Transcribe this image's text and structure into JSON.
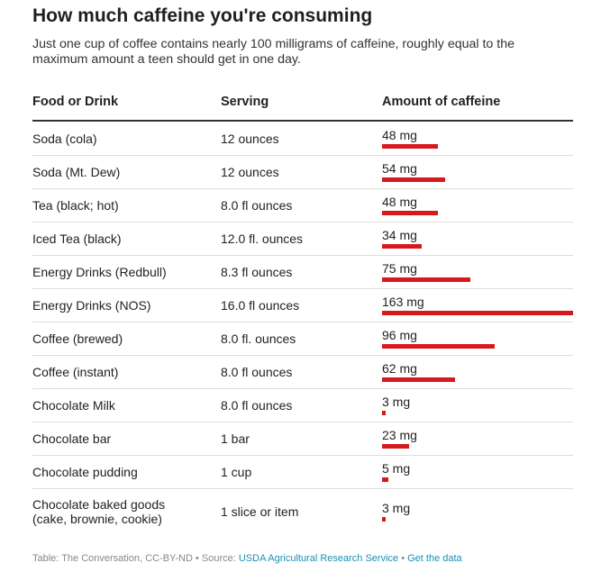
{
  "title": "How much caffeine you're consuming",
  "subtitle": "Just one cup of coffee contains nearly 100 milligrams of caffeine, roughly equal to the maximum amount a teen should get in one day.",
  "table": {
    "columns": [
      "Food or Drink",
      "Serving",
      "Amount of caffeine"
    ]
  },
  "chart_data": {
    "type": "table",
    "title": "How much caffeine you're consuming",
    "columns": [
      "Food or Drink",
      "Serving",
      "Amount of caffeine"
    ],
    "max_value": 163,
    "bar_color": "#d7191c",
    "rows": [
      {
        "food": "Soda (cola)",
        "serving": "12 ounces",
        "value": 48,
        "label": "48 mg"
      },
      {
        "food": "Soda (Mt. Dew)",
        "serving": "12 ounces",
        "value": 54,
        "label": "54 mg"
      },
      {
        "food": "Tea (black; hot)",
        "serving": "8.0 fl ounces",
        "value": 48,
        "label": "48 mg"
      },
      {
        "food": "Iced Tea (black)",
        "serving": "12.0 fl. ounces",
        "value": 34,
        "label": "34 mg"
      },
      {
        "food": "Energy Drinks (Redbull)",
        "serving": "8.3 fl ounces",
        "value": 75,
        "label": "75 mg"
      },
      {
        "food": "Energy Drinks (NOS)",
        "serving": "16.0 fl ounces",
        "value": 163,
        "label": "163 mg"
      },
      {
        "food": "Coffee (brewed)",
        "serving": "8.0 fl. ounces",
        "value": 96,
        "label": "96 mg"
      },
      {
        "food": "Coffee (instant)",
        "serving": "8.0 fl ounces",
        "value": 62,
        "label": "62 mg"
      },
      {
        "food": "Chocolate Milk",
        "serving": "8.0 fl ounces",
        "value": 3,
        "label": "3 mg"
      },
      {
        "food": "Chocolate bar",
        "serving": "1 bar",
        "value": 23,
        "label": "23 mg"
      },
      {
        "food": "Chocolate pudding",
        "serving": "1 cup",
        "value": 5,
        "label": "5 mg"
      },
      {
        "food": "Chocolate baked goods\n(cake, brownie, cookie)",
        "serving": "1 slice or item",
        "value": 3,
        "label": "3 mg"
      }
    ]
  },
  "footer": {
    "credit": "Table: The Conversation, CC-BY-ND",
    "sep1": " • Source: ",
    "source_link": "USDA Agricultural Research Service",
    "sep2": " • ",
    "data_link": "Get the data"
  }
}
